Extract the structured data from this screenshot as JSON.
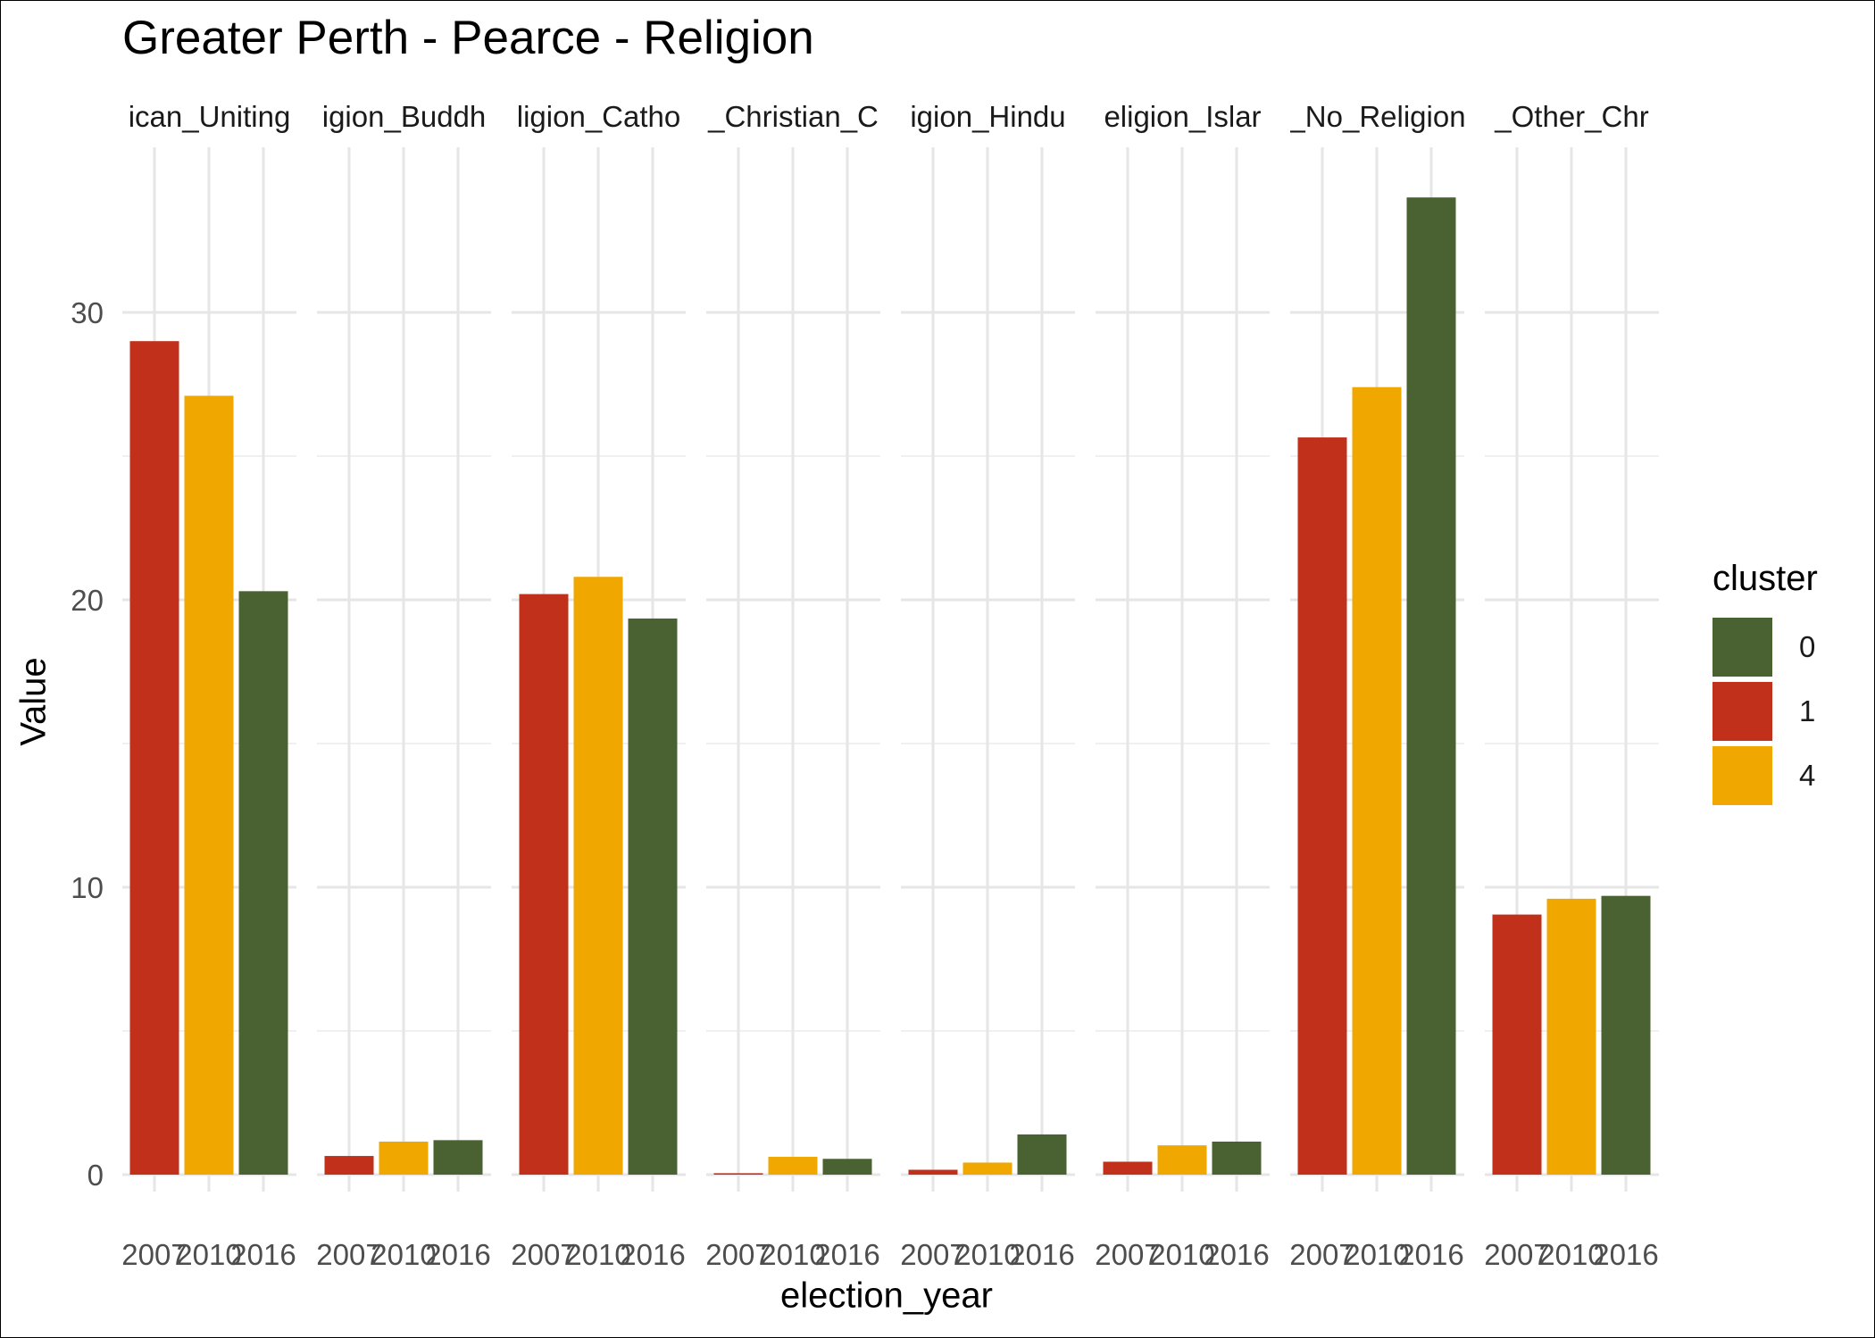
{
  "chart_data": {
    "type": "bar",
    "title": "Greater Perth - Pearce - Religion",
    "xlabel": "election_year",
    "ylabel": "Value",
    "ylim": [
      0,
      35
    ],
    "y_ticks": [
      "0",
      "10",
      "20",
      "30"
    ],
    "x_ticks": [
      "2007",
      "2010",
      "2016"
    ],
    "grid": true,
    "legend": {
      "title": "cluster",
      "position": "right",
      "entries": [
        {
          "label": "0",
          "color": "#4a6131"
        },
        {
          "label": "1",
          "color": "#c0301a"
        },
        {
          "label": "4",
          "color": "#f0a800"
        }
      ]
    },
    "facets": [
      {
        "strip": "ican_Uniting",
        "bars": [
          {
            "x": "2007",
            "value": 29.0,
            "cluster": "1",
            "color": "#c0301a"
          },
          {
            "x": "2010",
            "value": 27.1,
            "cluster": "4",
            "color": "#f0a800"
          },
          {
            "x": "2016",
            "value": 20.3,
            "cluster": "0",
            "color": "#4a6131"
          }
        ]
      },
      {
        "strip": "igion_Buddh",
        "bars": [
          {
            "x": "2007",
            "value": 0.65,
            "cluster": "1",
            "color": "#c0301a"
          },
          {
            "x": "2010",
            "value": 1.15,
            "cluster": "4",
            "color": "#f0a800"
          },
          {
            "x": "2016",
            "value": 1.2,
            "cluster": "0",
            "color": "#4a6131"
          }
        ]
      },
      {
        "strip": "ligion_Catho",
        "bars": [
          {
            "x": "2007",
            "value": 20.2,
            "cluster": "1",
            "color": "#c0301a"
          },
          {
            "x": "2010",
            "value": 20.8,
            "cluster": "4",
            "color": "#f0a800"
          },
          {
            "x": "2016",
            "value": 19.35,
            "cluster": "0",
            "color": "#4a6131"
          }
        ]
      },
      {
        "strip": "_Christian_C",
        "bars": [
          {
            "x": "2007",
            "value": 0.05,
            "cluster": "1",
            "color": "#c0301a"
          },
          {
            "x": "2010",
            "value": 0.62,
            "cluster": "4",
            "color": "#f0a800"
          },
          {
            "x": "2016",
            "value": 0.55,
            "cluster": "0",
            "color": "#4a6131"
          }
        ]
      },
      {
        "strip": "igion_Hindu",
        "bars": [
          {
            "x": "2007",
            "value": 0.17,
            "cluster": "1",
            "color": "#c0301a"
          },
          {
            "x": "2010",
            "value": 0.42,
            "cluster": "4",
            "color": "#f0a800"
          },
          {
            "x": "2016",
            "value": 1.4,
            "cluster": "0",
            "color": "#4a6131"
          }
        ]
      },
      {
        "strip": "eligion_Islar",
        "bars": [
          {
            "x": "2007",
            "value": 0.45,
            "cluster": "1",
            "color": "#c0301a"
          },
          {
            "x": "2010",
            "value": 1.02,
            "cluster": "4",
            "color": "#f0a800"
          },
          {
            "x": "2016",
            "value": 1.15,
            "cluster": "0",
            "color": "#4a6131"
          }
        ]
      },
      {
        "strip": "_No_Religion",
        "bars": [
          {
            "x": "2007",
            "value": 25.65,
            "cluster": "1",
            "color": "#c0301a"
          },
          {
            "x": "2010",
            "value": 27.4,
            "cluster": "4",
            "color": "#f0a800"
          },
          {
            "x": "2016",
            "value": 34.0,
            "cluster": "0",
            "color": "#4a6131"
          }
        ]
      },
      {
        "strip": "_Other_Chr",
        "bars": [
          {
            "x": "2007",
            "value": 9.05,
            "cluster": "1",
            "color": "#c0301a"
          },
          {
            "x": "2010",
            "value": 9.6,
            "cluster": "4",
            "color": "#f0a800"
          },
          {
            "x": "2016",
            "value": 9.7,
            "cluster": "0",
            "color": "#4a6131"
          }
        ]
      }
    ]
  }
}
